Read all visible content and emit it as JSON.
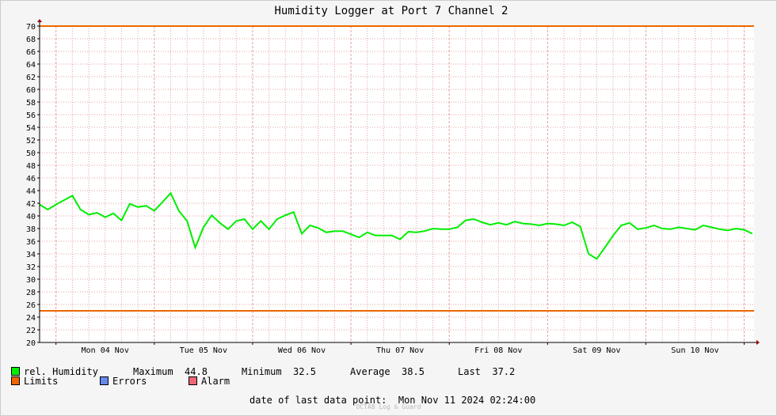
{
  "colors": {
    "series": "#00ee00",
    "limits": "#ee6600",
    "errors": "#6688ee",
    "alarm": "#ee6677",
    "grid": "#e6a0a0"
  },
  "legend": {
    "series_label": "rel. Humidity",
    "max_label": "Maximum",
    "max_value": "44.8",
    "min_label": "Minimum",
    "min_value": "32.5",
    "avg_label": "Average",
    "avg_value": "38.5",
    "last_label": "Last",
    "last_value": "37.2",
    "limits_label": "Limits",
    "errors_label": "Errors",
    "alarm_label": "Alarm"
  },
  "footer": {
    "last_point_label": "date of last data point:",
    "last_point_value": "Mon Nov 11 2024 02:24:00",
    "watermark": "OCTA8 Log & Guard"
  },
  "chart_data": {
    "type": "line",
    "title": "Humidity Logger at Port 7 Channel 2",
    "xlabel": "",
    "ylabel": "",
    "ylim": [
      20,
      70
    ],
    "yticks": [
      20,
      22,
      24,
      26,
      28,
      30,
      32,
      34,
      36,
      38,
      40,
      42,
      44,
      46,
      48,
      50,
      52,
      54,
      56,
      58,
      60,
      62,
      64,
      66,
      68,
      70
    ],
    "xlim": [
      "2024-11-03 20:00",
      "2024-11-11 02:24"
    ],
    "xticks": [
      {
        "label": "Mon 04 Nov",
        "date": "2024-11-04 12:00"
      },
      {
        "label": "Tue 05 Nov",
        "date": "2024-11-05 12:00"
      },
      {
        "label": "Wed 06 Nov",
        "date": "2024-11-06 12:00"
      },
      {
        "label": "Thu 07 Nov",
        "date": "2024-11-07 12:00"
      },
      {
        "label": "Fri 08 Nov",
        "date": "2024-11-08 12:00"
      },
      {
        "label": "Sat 09 Nov",
        "date": "2024-11-09 12:00"
      },
      {
        "label": "Sun 10 Nov",
        "date": "2024-11-10 12:00"
      }
    ],
    "limits": {
      "upper": 70,
      "lower": 25
    },
    "grid": true,
    "series": [
      {
        "name": "rel. Humidity",
        "x": [
          "2024-11-03 20:00",
          "2024-11-03 22:00",
          "2024-11-04 00:00",
          "2024-11-04 02:00",
          "2024-11-04 04:00",
          "2024-11-04 06:00",
          "2024-11-04 08:00",
          "2024-11-04 10:00",
          "2024-11-04 12:00",
          "2024-11-04 14:00",
          "2024-11-04 16:00",
          "2024-11-04 18:00",
          "2024-11-04 20:00",
          "2024-11-04 22:00",
          "2024-11-05 00:00",
          "2024-11-05 02:00",
          "2024-11-05 04:00",
          "2024-11-05 06:00",
          "2024-11-05 08:00",
          "2024-11-05 10:00",
          "2024-11-05 12:00",
          "2024-11-05 14:00",
          "2024-11-05 16:00",
          "2024-11-05 18:00",
          "2024-11-05 20:00",
          "2024-11-05 22:00",
          "2024-11-06 00:00",
          "2024-11-06 02:00",
          "2024-11-06 04:00",
          "2024-11-06 06:00",
          "2024-11-06 08:00",
          "2024-11-06 10:00",
          "2024-11-06 12:00",
          "2024-11-06 14:00",
          "2024-11-06 16:00",
          "2024-11-06 18:00",
          "2024-11-06 20:00",
          "2024-11-06 22:00",
          "2024-11-07 00:00",
          "2024-11-07 02:00",
          "2024-11-07 04:00",
          "2024-11-07 06:00",
          "2024-11-07 08:00",
          "2024-11-07 10:00",
          "2024-11-07 12:00",
          "2024-11-07 14:00",
          "2024-11-07 16:00",
          "2024-11-07 18:00",
          "2024-11-07 20:00",
          "2024-11-07 22:00",
          "2024-11-08 00:00",
          "2024-11-08 02:00",
          "2024-11-08 04:00",
          "2024-11-08 06:00",
          "2024-11-08 08:00",
          "2024-11-08 10:00",
          "2024-11-08 12:00",
          "2024-11-08 14:00",
          "2024-11-08 16:00",
          "2024-11-08 18:00",
          "2024-11-08 20:00",
          "2024-11-08 22:00",
          "2024-11-09 00:00",
          "2024-11-09 02:00",
          "2024-11-09 04:00",
          "2024-11-09 06:00",
          "2024-11-09 08:00",
          "2024-11-09 10:00",
          "2024-11-09 12:00",
          "2024-11-09 14:00",
          "2024-11-09 16:00",
          "2024-11-09 18:00",
          "2024-11-09 20:00",
          "2024-11-09 22:00",
          "2024-11-10 00:00",
          "2024-11-10 02:00",
          "2024-11-10 04:00",
          "2024-11-10 06:00",
          "2024-11-10 08:00",
          "2024-11-10 10:00",
          "2024-11-10 12:00",
          "2024-11-10 14:00",
          "2024-11-10 16:00",
          "2024-11-10 18:00",
          "2024-11-10 20:00",
          "2024-11-10 22:00",
          "2024-11-11 00:00",
          "2024-11-11 02:00"
        ],
        "y": [
          41.8,
          41.0,
          41.8,
          42.5,
          43.2,
          41.0,
          40.2,
          40.5,
          39.8,
          40.4,
          39.3,
          41.9,
          41.4,
          41.6,
          40.8,
          42.2,
          43.6,
          40.8,
          39.2,
          35.0,
          38.2,
          40.1,
          38.9,
          37.9,
          39.2,
          39.5,
          37.9,
          39.2,
          37.9,
          39.5,
          40.1,
          40.6,
          37.2,
          38.5,
          38.1,
          37.4,
          37.6,
          37.6,
          37.1,
          36.6,
          37.4,
          36.9,
          36.9,
          36.9,
          36.3,
          37.5,
          37.4,
          37.6,
          38.0,
          37.9,
          37.9,
          38.2,
          39.3,
          39.5,
          39.0,
          38.6,
          38.9,
          38.6,
          39.1,
          38.8,
          38.7,
          38.5,
          38.8,
          38.7,
          38.5,
          39.0,
          38.3,
          34.0,
          33.2,
          35.0,
          36.9,
          38.5,
          38.9,
          37.9,
          38.1,
          38.5,
          38.0,
          37.9,
          38.2,
          38.0,
          37.8,
          38.5,
          38.2,
          37.9,
          37.7,
          38.0,
          37.8,
          37.2
        ]
      }
    ]
  }
}
